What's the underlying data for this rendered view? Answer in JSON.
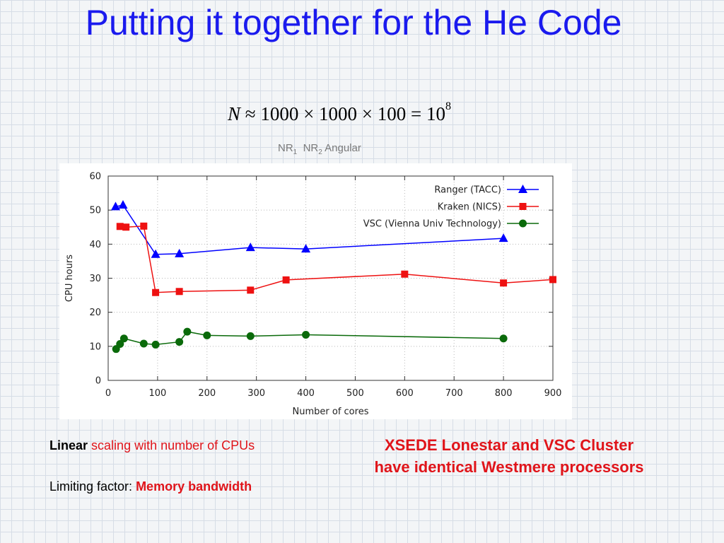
{
  "slide": {
    "title": "Putting it together for the He Code",
    "formula": {
      "lhs": "N",
      "rhs": "≈ 1000 × 1000 × 100 = 10",
      "exponent": "8"
    },
    "sublabel": {
      "nr1": "NR",
      "nr1_sub": "1",
      "nr2": "NR",
      "nr2_sub": "2",
      "angular": "Angular"
    },
    "notes": {
      "linear_bold": "Linear",
      "linear_rest": "scaling with number of CPUs",
      "limiting_prefix": "Limiting factor:",
      "limiting_value": "Memory bandwidth",
      "xsede_line1": "XSEDE Lonestar and VSC Cluster",
      "xsede_line2": "have identical Westmere processors"
    }
  },
  "chart_data": {
    "type": "line",
    "title": "",
    "xlabel": "Number of cores",
    "ylabel": "CPU hours",
    "xlim": [
      0,
      900
    ],
    "ylim": [
      0,
      60
    ],
    "xticks": [
      "0",
      "100",
      "200",
      "300",
      "400",
      "500",
      "600",
      "700",
      "800",
      "900"
    ],
    "yticks": [
      "0",
      "10",
      "20",
      "30",
      "40",
      "50",
      "60"
    ],
    "grid": true,
    "legend_position": "top-right",
    "series": [
      {
        "name": "Ranger (TACC)",
        "color": "#0000ff",
        "marker": "triangle",
        "x": [
          15,
          30,
          96,
          144,
          288,
          400,
          800
        ],
        "y": [
          51,
          51.5,
          37,
          37.2,
          39,
          38.6,
          41.7
        ]
      },
      {
        "name": "Kraken (NICS)",
        "color": "#ee1111",
        "marker": "square",
        "x": [
          24,
          36,
          72,
          96,
          144,
          288,
          360,
          600,
          800,
          900
        ],
        "y": [
          45.2,
          45,
          45.3,
          25.8,
          26.1,
          26.5,
          29.5,
          31.2,
          28.6,
          29.6
        ]
      },
      {
        "name": "VSC (Vienna Univ Technology)",
        "color": "#0a6a0a",
        "marker": "circle",
        "x": [
          16,
          24,
          32,
          72,
          96,
          144,
          160,
          200,
          288,
          400,
          800
        ],
        "y": [
          9.2,
          10.7,
          12.3,
          10.8,
          10.5,
          11.3,
          14.3,
          13.2,
          13,
          13.4,
          12.3
        ]
      }
    ]
  }
}
